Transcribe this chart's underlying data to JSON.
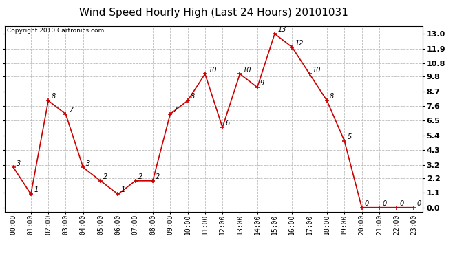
{
  "title": "Wind Speed Hourly High (Last 24 Hours) 20101031",
  "copyright_text": "Copyright 2010 Cartronics.com",
  "hours": [
    "00:00",
    "01:00",
    "02:00",
    "03:00",
    "04:00",
    "05:00",
    "06:00",
    "07:00",
    "08:00",
    "09:00",
    "10:00",
    "11:00",
    "12:00",
    "13:00",
    "14:00",
    "15:00",
    "16:00",
    "17:00",
    "18:00",
    "19:00",
    "20:00",
    "21:00",
    "22:00",
    "23:00"
  ],
  "values": [
    3,
    1,
    8,
    7,
    3,
    2,
    1,
    2,
    2,
    7,
    8,
    10,
    6,
    10,
    9,
    13,
    12,
    10,
    8,
    5,
    0,
    0,
    0,
    0
  ],
  "yticks": [
    0.0,
    1.1,
    2.2,
    3.2,
    4.3,
    5.4,
    6.5,
    7.6,
    8.7,
    9.8,
    10.8,
    11.9,
    13.0
  ],
  "ylim": [
    -0.3,
    13.6
  ],
  "line_color": "#cc0000",
  "marker_color": "#cc0000",
  "bg_color": "#ffffff",
  "grid_color": "#bbbbbb",
  "title_fontsize": 11,
  "label_fontsize": 7,
  "annotation_fontsize": 7,
  "copyright_fontsize": 6.5
}
